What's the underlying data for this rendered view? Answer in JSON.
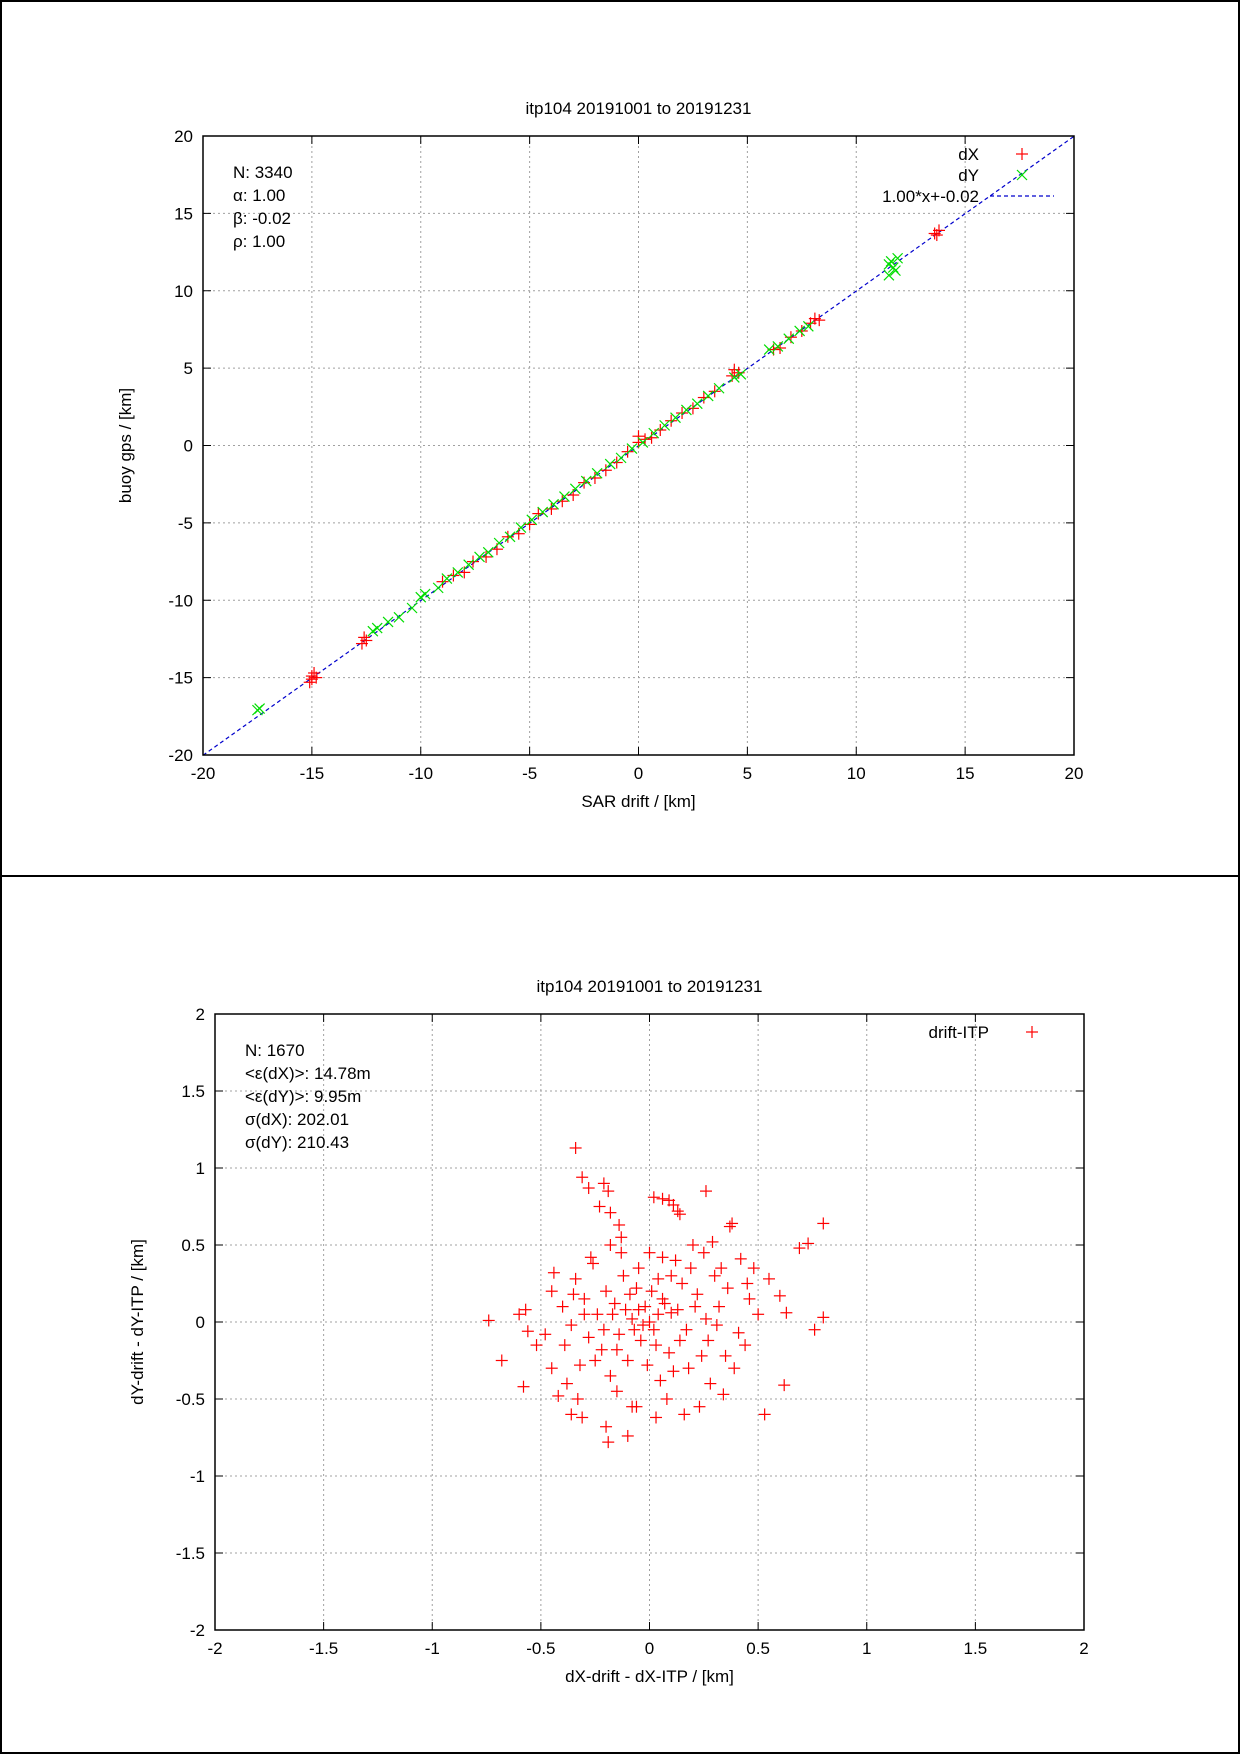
{
  "chart_data": [
    {
      "type": "scatter",
      "title": "itp104 20191001 to 20191231",
      "xlabel": "SAR drift / [km]",
      "ylabel": "buoy gps / [km]",
      "xlim": [
        -20,
        20
      ],
      "ylim": [
        -20,
        20
      ],
      "xticks": [
        -20,
        -15,
        -10,
        -5,
        0,
        5,
        10,
        15,
        20
      ],
      "yticks": [
        -20,
        -15,
        -10,
        -5,
        0,
        5,
        10,
        15,
        20
      ],
      "grid": true,
      "legend_position": "top-right",
      "annotations": [
        "N: 3340",
        "α: 1.00",
        "β: -0.02",
        "ρ: 1.00"
      ],
      "series": [
        {
          "name": "dX",
          "marker": "+",
          "color": "#ff0000",
          "points": [
            [
              -15.0,
              -15.1
            ],
            [
              -14.9,
              -14.7
            ],
            [
              -15.1,
              -15.3
            ],
            [
              -15.0,
              -14.9
            ],
            [
              -14.8,
              -15.0
            ],
            [
              -12.6,
              -12.4
            ],
            [
              -12.7,
              -12.8
            ],
            [
              -12.5,
              -12.6
            ],
            [
              -9.0,
              -8.8
            ],
            [
              -8.5,
              -8.4
            ],
            [
              -8.0,
              -8.2
            ],
            [
              -7.6,
              -7.5
            ],
            [
              -7.0,
              -7.2
            ],
            [
              -6.5,
              -6.7
            ],
            [
              -6.0,
              -5.9
            ],
            [
              -5.5,
              -5.7
            ],
            [
              -5.0,
              -5.1
            ],
            [
              -4.6,
              -4.4
            ],
            [
              -4.0,
              -4.1
            ],
            [
              -3.5,
              -3.6
            ],
            [
              -3.0,
              -3.2
            ],
            [
              -2.5,
              -2.4
            ],
            [
              -2.0,
              -2.1
            ],
            [
              -1.5,
              -1.6
            ],
            [
              -1.0,
              -1.1
            ],
            [
              -0.5,
              -0.4
            ],
            [
              0.0,
              0.2
            ],
            [
              0.0,
              0.6
            ],
            [
              0.3,
              0.4
            ],
            [
              0.6,
              0.5
            ],
            [
              1.0,
              1.0
            ],
            [
              1.5,
              1.6
            ],
            [
              2.0,
              2.1
            ],
            [
              2.5,
              2.4
            ],
            [
              3.0,
              3.1
            ],
            [
              3.5,
              3.5
            ],
            [
              4.3,
              4.5
            ],
            [
              4.4,
              4.9
            ],
            [
              4.6,
              4.7
            ],
            [
              6.2,
              6.2
            ],
            [
              6.5,
              6.3
            ],
            [
              7.0,
              7.0
            ],
            [
              7.5,
              7.4
            ],
            [
              7.9,
              7.9
            ],
            [
              8.1,
              8.2
            ],
            [
              8.3,
              8.1
            ],
            [
              13.6,
              13.7
            ],
            [
              13.8,
              13.9
            ],
            [
              13.7,
              13.6
            ]
          ]
        },
        {
          "name": "dY",
          "marker": "x",
          "color": "#00dd00",
          "points": [
            [
              -17.5,
              -17.1
            ],
            [
              -17.4,
              -17.0
            ],
            [
              -12.2,
              -12.0
            ],
            [
              -12.0,
              -11.8
            ],
            [
              -11.5,
              -11.4
            ],
            [
              -11.0,
              -11.1
            ],
            [
              -10.4,
              -10.5
            ],
            [
              -10.0,
              -9.8
            ],
            [
              -9.8,
              -9.6
            ],
            [
              -9.2,
              -9.2
            ],
            [
              -8.8,
              -8.6
            ],
            [
              -8.3,
              -8.2
            ],
            [
              -7.8,
              -7.7
            ],
            [
              -7.3,
              -7.2
            ],
            [
              -6.9,
              -6.9
            ],
            [
              -6.4,
              -6.3
            ],
            [
              -5.9,
              -5.9
            ],
            [
              -5.4,
              -5.3
            ],
            [
              -4.9,
              -4.8
            ],
            [
              -4.4,
              -4.3
            ],
            [
              -3.9,
              -3.8
            ],
            [
              -3.4,
              -3.3
            ],
            [
              -2.9,
              -2.8
            ],
            [
              -2.4,
              -2.3
            ],
            [
              -1.9,
              -1.8
            ],
            [
              -1.3,
              -1.2
            ],
            [
              -0.8,
              -0.8
            ],
            [
              -0.3,
              -0.2
            ],
            [
              0.2,
              0.2
            ],
            [
              0.7,
              0.8
            ],
            [
              1.2,
              1.3
            ],
            [
              1.7,
              1.8
            ],
            [
              2.2,
              2.3
            ],
            [
              2.7,
              2.7
            ],
            [
              3.2,
              3.2
            ],
            [
              3.7,
              3.7
            ],
            [
              4.4,
              4.4
            ],
            [
              4.7,
              4.6
            ],
            [
              6.0,
              6.2
            ],
            [
              6.4,
              6.4
            ],
            [
              6.9,
              6.9
            ],
            [
              7.4,
              7.4
            ],
            [
              7.8,
              7.7
            ],
            [
              11.5,
              11.0
            ],
            [
              11.7,
              11.5
            ],
            [
              11.6,
              11.9
            ],
            [
              11.9,
              12.1
            ],
            [
              11.8,
              11.3
            ],
            [
              11.5,
              11.7
            ]
          ]
        },
        {
          "name": "1.00*x+-0.02",
          "kind": "line",
          "style": "dashed",
          "color": "#0000cc",
          "slope": 1.0,
          "intercept": -0.02
        }
      ]
    },
    {
      "type": "scatter",
      "title": "itp104 20191001 to 20191231",
      "xlabel": "dX-drift - dX-ITP / [km]",
      "ylabel": "dY-drift - dY-ITP / [km]",
      "xlim": [
        -2,
        2
      ],
      "ylim": [
        -2,
        2
      ],
      "xticks": [
        -2,
        -1.5,
        -1,
        -0.5,
        0,
        0.5,
        1,
        1.5,
        2
      ],
      "yticks": [
        -2,
        -1.5,
        -1,
        -0.5,
        0,
        0.5,
        1,
        1.5,
        2
      ],
      "grid": true,
      "legend_position": "top-right",
      "annotations": [
        "N: 1670",
        "<ε(dX)>:  14.78m",
        "<ε(dY)>: 9.95m",
        "σ(dX):  202.01",
        "σ(dY):  210.43"
      ],
      "series": [
        {
          "name": "drift-ITP",
          "marker": "+",
          "color": "#ff0000",
          "points": [
            [
              -0.34,
              1.13
            ],
            [
              -0.31,
              0.94
            ],
            [
              -0.21,
              0.9
            ],
            [
              -0.28,
              0.87
            ],
            [
              -0.19,
              0.85
            ],
            [
              -0.23,
              0.75
            ],
            [
              -0.18,
              0.71
            ],
            [
              0.02,
              0.81
            ],
            [
              0.06,
              0.8
            ],
            [
              0.09,
              0.79
            ],
            [
              0.11,
              0.76
            ],
            [
              0.13,
              0.72
            ],
            [
              0.14,
              0.7
            ],
            [
              0.26,
              0.85
            ],
            [
              0.8,
              0.64
            ],
            [
              0.73,
              0.51
            ],
            [
              0.69,
              0.48
            ],
            [
              0.38,
              0.64
            ],
            [
              0.37,
              0.62
            ],
            [
              0.29,
              0.52
            ],
            [
              0.42,
              0.41
            ],
            [
              -0.14,
              0.63
            ],
            [
              -0.13,
              0.55
            ],
            [
              -0.18,
              0.5
            ],
            [
              -0.74,
              0.01
            ],
            [
              -0.68,
              -0.25
            ],
            [
              -0.57,
              0.08
            ],
            [
              -0.58,
              -0.42
            ],
            [
              -0.6,
              0.05
            ],
            [
              -0.56,
              -0.06
            ],
            [
              -0.52,
              -0.15
            ],
            [
              -0.45,
              0.2
            ],
            [
              -0.45,
              -0.3
            ],
            [
              -0.42,
              -0.48
            ],
            [
              -0.36,
              -0.6
            ],
            [
              -0.31,
              -0.62
            ],
            [
              -0.2,
              -0.68
            ],
            [
              -0.19,
              -0.78
            ],
            [
              -0.1,
              -0.74
            ],
            [
              -0.06,
              -0.55
            ],
            [
              0.03,
              -0.62
            ],
            [
              0.16,
              -0.6
            ],
            [
              0.23,
              -0.55
            ],
            [
              0.34,
              -0.47
            ],
            [
              0.53,
              -0.6
            ],
            [
              0.62,
              -0.41
            ],
            [
              0.76,
              -0.05
            ],
            [
              0.8,
              0.03
            ],
            [
              0.63,
              0.06
            ],
            [
              0.6,
              0.17
            ],
            [
              0.55,
              0.28
            ],
            [
              0.48,
              0.35
            ],
            [
              0.46,
              0.15
            ],
            [
              0.41,
              -0.07
            ],
            [
              0.35,
              -0.22
            ],
            [
              0.3,
              0.3
            ],
            [
              0.25,
              0.45
            ],
            [
              0.2,
              0.5
            ],
            [
              0.15,
              0.25
            ],
            [
              0.12,
              0.4
            ],
            [
              0.09,
              -0.2
            ],
            [
              0.06,
              0.15
            ],
            [
              0.04,
              0.05
            ],
            [
              0.02,
              -0.05
            ],
            [
              0.0,
              0.0
            ],
            [
              -0.02,
              0.1
            ],
            [
              -0.04,
              -0.12
            ],
            [
              -0.06,
              0.22
            ],
            [
              -0.08,
              0.02
            ],
            [
              -0.1,
              -0.25
            ],
            [
              -0.12,
              0.3
            ],
            [
              -0.14,
              -0.08
            ],
            [
              -0.16,
              0.12
            ],
            [
              -0.18,
              -0.35
            ],
            [
              -0.2,
              0.2
            ],
            [
              -0.22,
              -0.18
            ],
            [
              -0.24,
              0.05
            ],
            [
              -0.26,
              0.38
            ],
            [
              -0.28,
              -0.1
            ],
            [
              -0.3,
              0.15
            ],
            [
              -0.32,
              -0.28
            ],
            [
              -0.34,
              0.28
            ],
            [
              -0.36,
              -0.02
            ],
            [
              -0.38,
              -0.4
            ],
            [
              -0.4,
              0.1
            ],
            [
              -0.33,
              -0.5
            ],
            [
              -0.27,
              0.42
            ],
            [
              -0.15,
              -0.45
            ],
            [
              -0.05,
              0.35
            ],
            [
              0.05,
              -0.38
            ],
            [
              0.1,
              0.3
            ],
            [
              0.18,
              -0.3
            ],
            [
              0.22,
              0.18
            ],
            [
              0.27,
              -0.12
            ],
            [
              0.32,
              0.1
            ],
            [
              0.36,
              0.22
            ],
            [
              0.39,
              -0.3
            ],
            [
              0.44,
              -0.15
            ],
            [
              0.5,
              0.05
            ],
            [
              -0.48,
              -0.08
            ],
            [
              -0.44,
              0.32
            ],
            [
              0.0,
              0.45
            ],
            [
              0.08,
              -0.5
            ],
            [
              -0.08,
              -0.55
            ],
            [
              0.13,
              0.08
            ],
            [
              -0.11,
              0.08
            ],
            [
              0.07,
              0.12
            ],
            [
              -0.03,
              -0.02
            ],
            [
              0.01,
              0.2
            ],
            [
              0.03,
              -0.15
            ],
            [
              -0.07,
              -0.05
            ],
            [
              0.17,
              -0.05
            ],
            [
              0.21,
              0.1
            ],
            [
              -0.17,
              0.05
            ],
            [
              -0.21,
              -0.05
            ],
            [
              0.26,
              0.02
            ],
            [
              -0.25,
              -0.25
            ],
            [
              0.31,
              -0.02
            ],
            [
              -0.3,
              0.05
            ],
            [
              0.11,
              -0.32
            ],
            [
              -0.13,
              0.45
            ],
            [
              0.19,
              0.35
            ],
            [
              0.28,
              -0.4
            ],
            [
              -0.35,
              0.18
            ],
            [
              -0.39,
              -0.15
            ],
            [
              0.45,
              0.25
            ],
            [
              0.33,
              0.35
            ],
            [
              -0.09,
              0.18
            ],
            [
              0.14,
              -0.12
            ],
            [
              -0.01,
              -0.28
            ],
            [
              0.06,
              0.42
            ],
            [
              -0.05,
              0.08
            ],
            [
              0.04,
              0.28
            ],
            [
              -0.15,
              -0.18
            ],
            [
              0.24,
              -0.22
            ],
            [
              0.1,
              0.06
            ]
          ]
        }
      ]
    }
  ]
}
